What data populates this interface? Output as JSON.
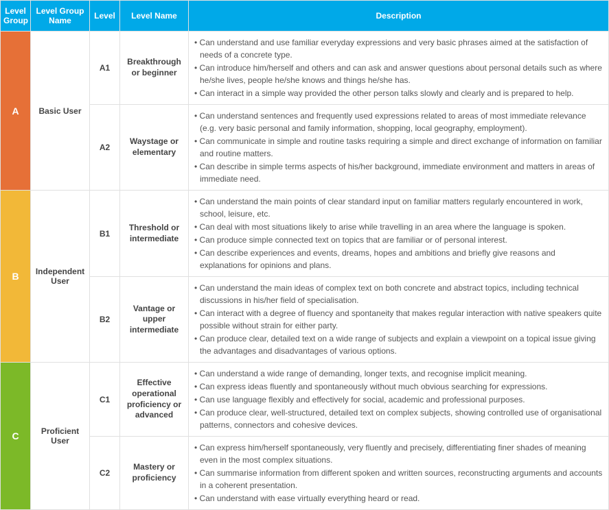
{
  "headers": {
    "level_group": "Level Group",
    "level_group_name": "Level Group Name",
    "level": "Level",
    "level_name": "Level Name",
    "description": "Description"
  },
  "colors": {
    "header_bg": "#00a9e8",
    "group_a": "#e67037",
    "group_b": "#f2b838",
    "group_c": "#7cb928",
    "border": "#e0e0e0",
    "text": "#555555"
  },
  "groups": [
    {
      "code": "A",
      "name": "Basic User",
      "color": "#e67037",
      "levels": [
        {
          "code": "A1",
          "name": "Breakthrough or beginner",
          "bullets": [
            "Can understand and use familiar everyday expressions and very basic phrases aimed at the satisfaction of needs of a concrete type.",
            "Can introduce him/herself and others and can ask and answer questions about personal details such as where he/she lives, people he/she knows and things he/she has.",
            "Can interact in a simple way provided the other person talks slowly and clearly and is prepared to help."
          ]
        },
        {
          "code": "A2",
          "name": "Waystage or elementary",
          "bullets": [
            "Can understand sentences and frequently used expressions related to areas of most immediate relevance (e.g. very basic personal and family information, shopping, local geography, employment).",
            "Can communicate in simple and routine tasks requiring a simple and direct exchange of information on familiar and routine matters.",
            "Can describe in simple terms aspects of his/her background, immediate environment and matters in areas of immediate need."
          ]
        }
      ]
    },
    {
      "code": "B",
      "name": "Independent User",
      "color": "#f2b838",
      "levels": [
        {
          "code": "B1",
          "name": "Threshold or intermediate",
          "bullets": [
            "Can understand the main points of clear standard input on familiar matters regularly encountered in work, school, leisure, etc.",
            "Can deal with most situations likely to arise while travelling in an area where the language is spoken.",
            "Can produce simple connected text on topics that are familiar or of personal interest.",
            "Can describe experiences and events, dreams, hopes and ambitions and briefly give reasons and explanations for opinions and plans."
          ]
        },
        {
          "code": "B2",
          "name": "Vantage or upper intermediate",
          "bullets": [
            "Can understand the main ideas of complex text on both concrete and abstract topics, including technical discussions in his/her field of specialisation.",
            "Can interact with a degree of fluency and spontaneity that makes regular interaction with native speakers quite possible without strain for either party.",
            "Can produce clear, detailed text on a wide range of subjects and explain a viewpoint on a topical issue giving the advantages and disadvantages of various options."
          ]
        }
      ]
    },
    {
      "code": "C",
      "name": "Proficient User",
      "color": "#7cb928",
      "levels": [
        {
          "code": "C1",
          "name": "Effective operational proficiency or advanced",
          "bullets": [
            "Can understand a wide range of demanding, longer texts, and recognise implicit meaning.",
            "Can express ideas fluently and spontaneously without much obvious searching for expressions.",
            "Can use language flexibly and effectively for social, academic and professional purposes.",
            "Can produce clear, well-structured, detailed text on complex subjects, showing controlled use of organisational patterns, connectors and cohesive devices."
          ]
        },
        {
          "code": "C2",
          "name": "Mastery or proficiency",
          "bullets": [
            "Can express him/herself spontaneously, very fluently and precisely, differentiating finer shades of meaning even in the most complex situations.",
            "Can summarise information from different spoken and written sources, reconstructing arguments and accounts in a coherent presentation.",
            "Can understand with ease virtually everything heard or read."
          ]
        }
      ]
    }
  ]
}
